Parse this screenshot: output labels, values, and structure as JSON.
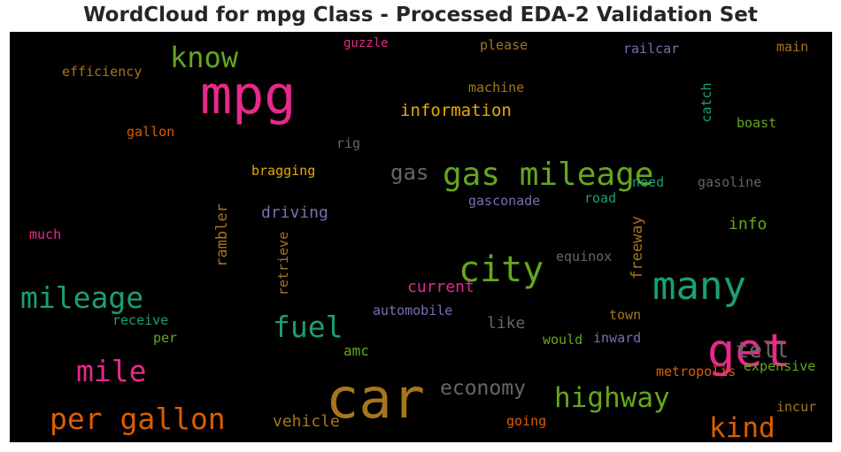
{
  "chart_data": {
    "type": "wordcloud",
    "title": "WordCloud for mpg Class - Processed EDA-2 Validation Set",
    "background_color": "#000000",
    "words": [
      {
        "text": "mpg",
        "color": "#e7298a",
        "size": 60,
        "vertical": false
      },
      {
        "text": "car",
        "color": "#a6761d",
        "size": 62,
        "vertical": false
      },
      {
        "text": "get",
        "color": "#e7298a",
        "size": 52,
        "vertical": false
      },
      {
        "text": "many",
        "color": "#1b9e77",
        "size": 44,
        "vertical": false
      },
      {
        "text": "city",
        "color": "#66a61e",
        "size": 40,
        "vertical": false
      },
      {
        "text": "gas mileage",
        "color": "#66a61e",
        "size": 36,
        "vertical": false
      },
      {
        "text": "mileage",
        "color": "#1b9e77",
        "size": 33,
        "vertical": false
      },
      {
        "text": "per gallon",
        "color": "#d95f02",
        "size": 33,
        "vertical": false
      },
      {
        "text": "mile",
        "color": "#e7298a",
        "size": 33,
        "vertical": false
      },
      {
        "text": "fuel",
        "color": "#1b9e77",
        "size": 33,
        "vertical": false
      },
      {
        "text": "know",
        "color": "#66a61e",
        "size": 32,
        "vertical": false
      },
      {
        "text": "highway",
        "color": "#66a61e",
        "size": 31,
        "vertical": false
      },
      {
        "text": "kind",
        "color": "#d95f02",
        "size": 31,
        "vertical": false
      },
      {
        "text": "tell",
        "color": "#666666",
        "size": 25,
        "vertical": false
      },
      {
        "text": "economy",
        "color": "#666666",
        "size": 23,
        "vertical": false
      },
      {
        "text": "gas",
        "color": "#666666",
        "size": 24,
        "vertical": false
      },
      {
        "text": "information",
        "color": "#e6ab02",
        "size": 19,
        "vertical": false
      },
      {
        "text": "driving",
        "color": "#7570b3",
        "size": 18,
        "vertical": false
      },
      {
        "text": "current",
        "color": "#e7298a",
        "size": 18,
        "vertical": false
      },
      {
        "text": "vehicle",
        "color": "#a6761d",
        "size": 18,
        "vertical": false
      },
      {
        "text": "like",
        "color": "#666666",
        "size": 18,
        "vertical": false
      },
      {
        "text": "info",
        "color": "#66a61e",
        "size": 18,
        "vertical": false
      },
      {
        "text": "amc",
        "color": "#66a61e",
        "size": 16,
        "vertical": false
      },
      {
        "text": "bragging",
        "color": "#e6ab02",
        "size": 15,
        "vertical": false
      },
      {
        "text": "efficiency",
        "color": "#a6761d",
        "size": 15,
        "vertical": false
      },
      {
        "text": "gallon",
        "color": "#d95f02",
        "size": 15,
        "vertical": false
      },
      {
        "text": "guzzle",
        "color": "#e7298a",
        "size": 14,
        "vertical": false
      },
      {
        "text": "please",
        "color": "#a6761d",
        "size": 15,
        "vertical": false
      },
      {
        "text": "railcar",
        "color": "#7570b3",
        "size": 15,
        "vertical": false
      },
      {
        "text": "main",
        "color": "#a6761d",
        "size": 15,
        "vertical": false
      },
      {
        "text": "machine",
        "color": "#a6761d",
        "size": 15,
        "vertical": false
      },
      {
        "text": "catch",
        "color": "#1b9e77",
        "size": 15,
        "vertical": true
      },
      {
        "text": "boast",
        "color": "#66a61e",
        "size": 15,
        "vertical": false
      },
      {
        "text": "rig",
        "color": "#666666",
        "size": 15,
        "vertical": false
      },
      {
        "text": "need",
        "color": "#1b9e77",
        "size": 15,
        "vertical": false
      },
      {
        "text": "gasoline",
        "color": "#666666",
        "size": 15,
        "vertical": false
      },
      {
        "text": "gasconade",
        "color": "#7570b3",
        "size": 15,
        "vertical": false
      },
      {
        "text": "road",
        "color": "#1b9e77",
        "size": 15,
        "vertical": false
      },
      {
        "text": "rambler",
        "color": "#a6761d",
        "size": 17,
        "vertical": true
      },
      {
        "text": "retrieve",
        "color": "#a6761d",
        "size": 15,
        "vertical": true
      },
      {
        "text": "freeway",
        "color": "#a6761d",
        "size": 17,
        "vertical": true
      },
      {
        "text": "much",
        "color": "#e7298a",
        "size": 15,
        "vertical": false
      },
      {
        "text": "equinox",
        "color": "#666666",
        "size": 15,
        "vertical": false
      },
      {
        "text": "automobile",
        "color": "#7570b3",
        "size": 15,
        "vertical": false
      },
      {
        "text": "receive",
        "color": "#1b9e77",
        "size": 15,
        "vertical": false
      },
      {
        "text": "per",
        "color": "#66a61e",
        "size": 15,
        "vertical": false
      },
      {
        "text": "town",
        "color": "#a6761d",
        "size": 15,
        "vertical": false
      },
      {
        "text": "would",
        "color": "#66a61e",
        "size": 15,
        "vertical": false
      },
      {
        "text": "inward",
        "color": "#7570b3",
        "size": 15,
        "vertical": false
      },
      {
        "text": "metropolis",
        "color": "#d95f02",
        "size": 15,
        "vertical": false
      },
      {
        "text": "expensive",
        "color": "#66a61e",
        "size": 15,
        "vertical": false
      },
      {
        "text": "incur",
        "color": "#a6761d",
        "size": 15,
        "vertical": false
      },
      {
        "text": "going",
        "color": "#d95f02",
        "size": 15,
        "vertical": false
      }
    ]
  }
}
